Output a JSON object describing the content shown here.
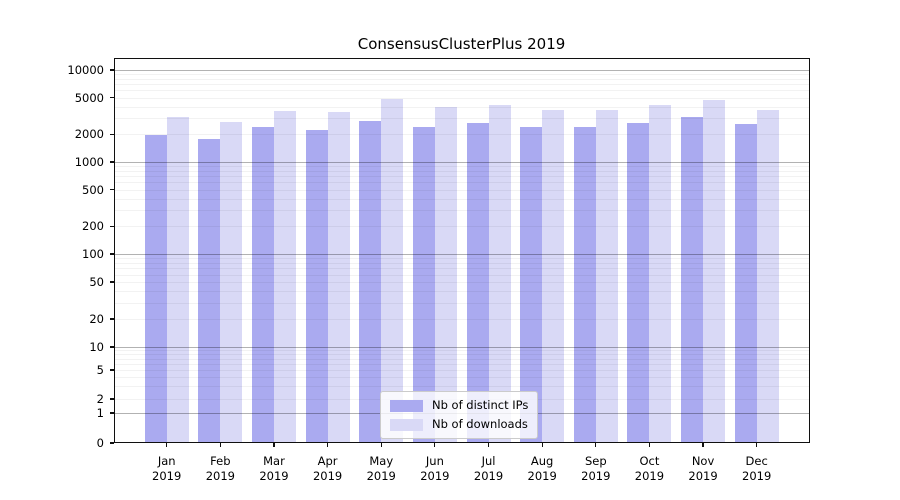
{
  "chart_data": {
    "type": "bar",
    "title": "ConsensusClusterPlus 2019",
    "months": [
      "Jan",
      "Feb",
      "Mar",
      "Apr",
      "May",
      "Jun",
      "Jul",
      "Aug",
      "Sep",
      "Oct",
      "Nov",
      "Dec"
    ],
    "year": "2019",
    "categories": [
      "Jan 2019",
      "Feb 2019",
      "Mar 2019",
      "Apr 2019",
      "May 2019",
      "Jun 2019",
      "Jul 2019",
      "Aug 2019",
      "Sep 2019",
      "Oct 2019",
      "Nov 2019",
      "Dec 2019"
    ],
    "series": [
      {
        "name": "Nb of distinct IPs",
        "color": "#aaaaf0",
        "values": [
          1950,
          1800,
          2400,
          2200,
          2800,
          2430,
          2650,
          2380,
          2400,
          2640,
          3100,
          2620
        ]
      },
      {
        "name": "Nb of downloads",
        "color": "#d9d9f6",
        "values": [
          3100,
          2700,
          3550,
          3480,
          4870,
          4000,
          4200,
          3700,
          3650,
          4150,
          4690,
          3670
        ]
      }
    ],
    "yscale": "log (symlog, 0 shown at baseline)",
    "yticks": [
      0,
      1,
      2,
      5,
      10,
      20,
      50,
      100,
      200,
      500,
      1000,
      2000,
      5000,
      10000
    ],
    "ylim": [
      0,
      13000
    ],
    "grid": "horizontal major (powers of 10) + faint minor log lines",
    "legend_position": "lower center",
    "colors": {
      "axis": "#101010",
      "grid_major": "rgba(0,0,0,0.30)",
      "grid_minor": "rgba(0,0,0,0.05)"
    }
  }
}
